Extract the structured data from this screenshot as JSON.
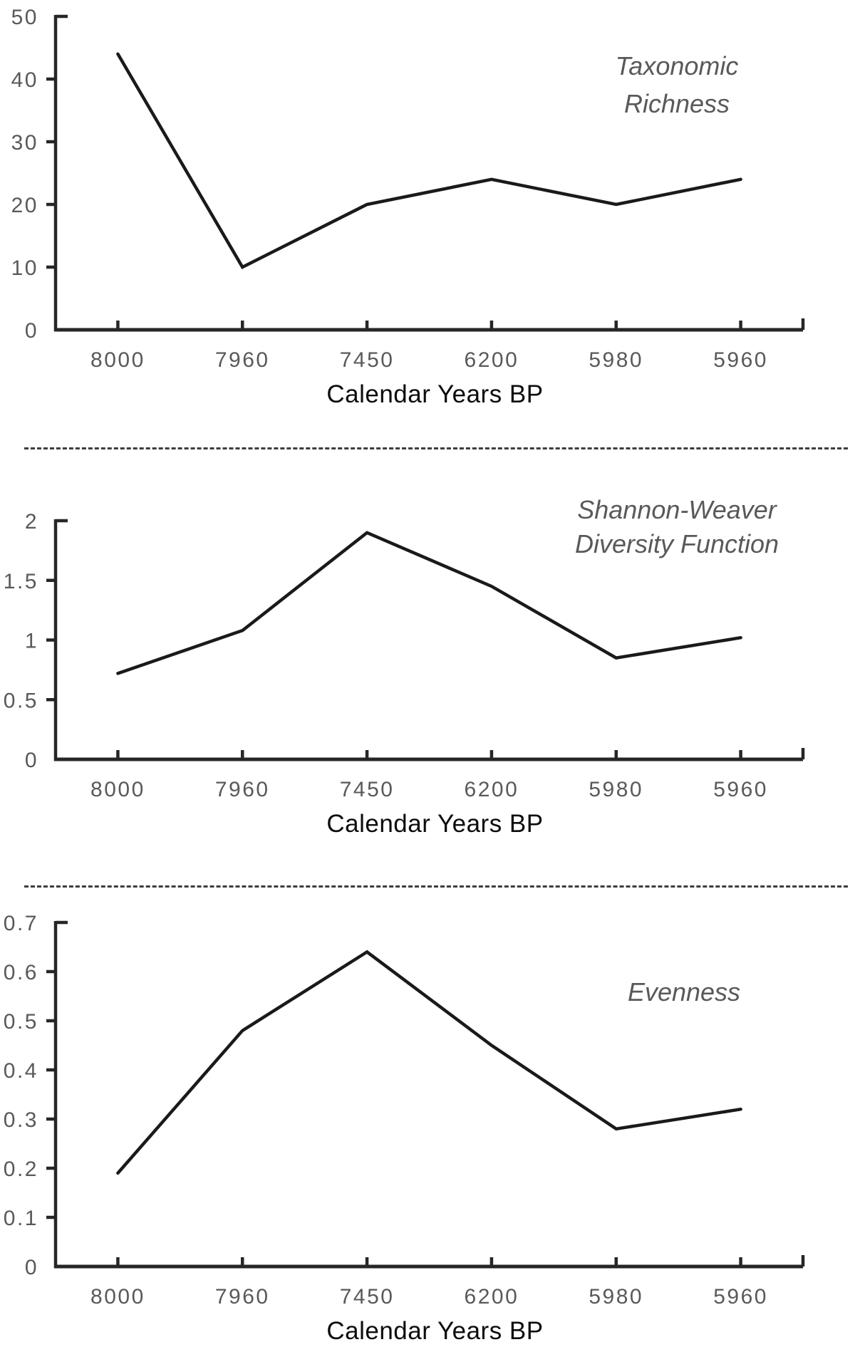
{
  "figure": {
    "axis_color": "#262626",
    "divider_color": "#3d3d3d",
    "x_axis_title": "Calendar Years BP"
  },
  "chart_data": [
    {
      "type": "line",
      "title_lines": [
        "Taxonomic",
        "Richness"
      ],
      "title": "Taxonomic Richness",
      "categories": [
        "8000",
        "7960",
        "7450",
        "6200",
        "5980",
        "5960"
      ],
      "values": [
        44,
        10,
        20,
        24,
        20,
        24
      ],
      "xlabel": "Calendar Years BP",
      "ylabel": "",
      "ylim": [
        0,
        50
      ],
      "yticks": [
        0,
        10,
        20,
        30,
        40,
        50
      ],
      "ytick_labels": [
        "0",
        "10",
        "20",
        "30",
        "40",
        "50"
      ],
      "grid": false,
      "legend": "none",
      "line_color": "#1a1a1a",
      "title_color": "#595959"
    },
    {
      "type": "line",
      "title_lines": [
        "Shannon-Weaver",
        "Diversity Function"
      ],
      "title": "Shannon-Weaver Diversity Function",
      "categories": [
        "8000",
        "7960",
        "7450",
        "6200",
        "5980",
        "5960"
      ],
      "values": [
        0.72,
        1.08,
        1.9,
        1.45,
        0.85,
        1.02
      ],
      "xlabel": "Calendar Years BP",
      "ylabel": "",
      "ylim": [
        0,
        2
      ],
      "yticks": [
        0,
        0.5,
        1,
        1.5,
        2
      ],
      "ytick_labels": [
        "0",
        "0.5",
        "1",
        "1.5",
        "2"
      ],
      "grid": false,
      "legend": "none",
      "line_color": "#1a1a1a",
      "title_color": "#595959"
    },
    {
      "type": "line",
      "title_lines": [
        "Evenness"
      ],
      "title": "Evenness",
      "categories": [
        "8000",
        "7960",
        "7450",
        "6200",
        "5980",
        "5960"
      ],
      "values": [
        0.19,
        0.48,
        0.64,
        0.45,
        0.28,
        0.32
      ],
      "xlabel": "Calendar Years BP",
      "ylabel": "",
      "ylim": [
        0,
        0.7
      ],
      "yticks": [
        0,
        0.1,
        0.2,
        0.3,
        0.4,
        0.5,
        0.6,
        0.7
      ],
      "ytick_labels": [
        "0",
        "0.1",
        "0.2",
        "0.3",
        "0.4",
        "0.5",
        "0.6",
        "0.7"
      ],
      "grid": false,
      "legend": "none",
      "line_color": "#1a1a1a",
      "title_color": "#595959"
    }
  ]
}
